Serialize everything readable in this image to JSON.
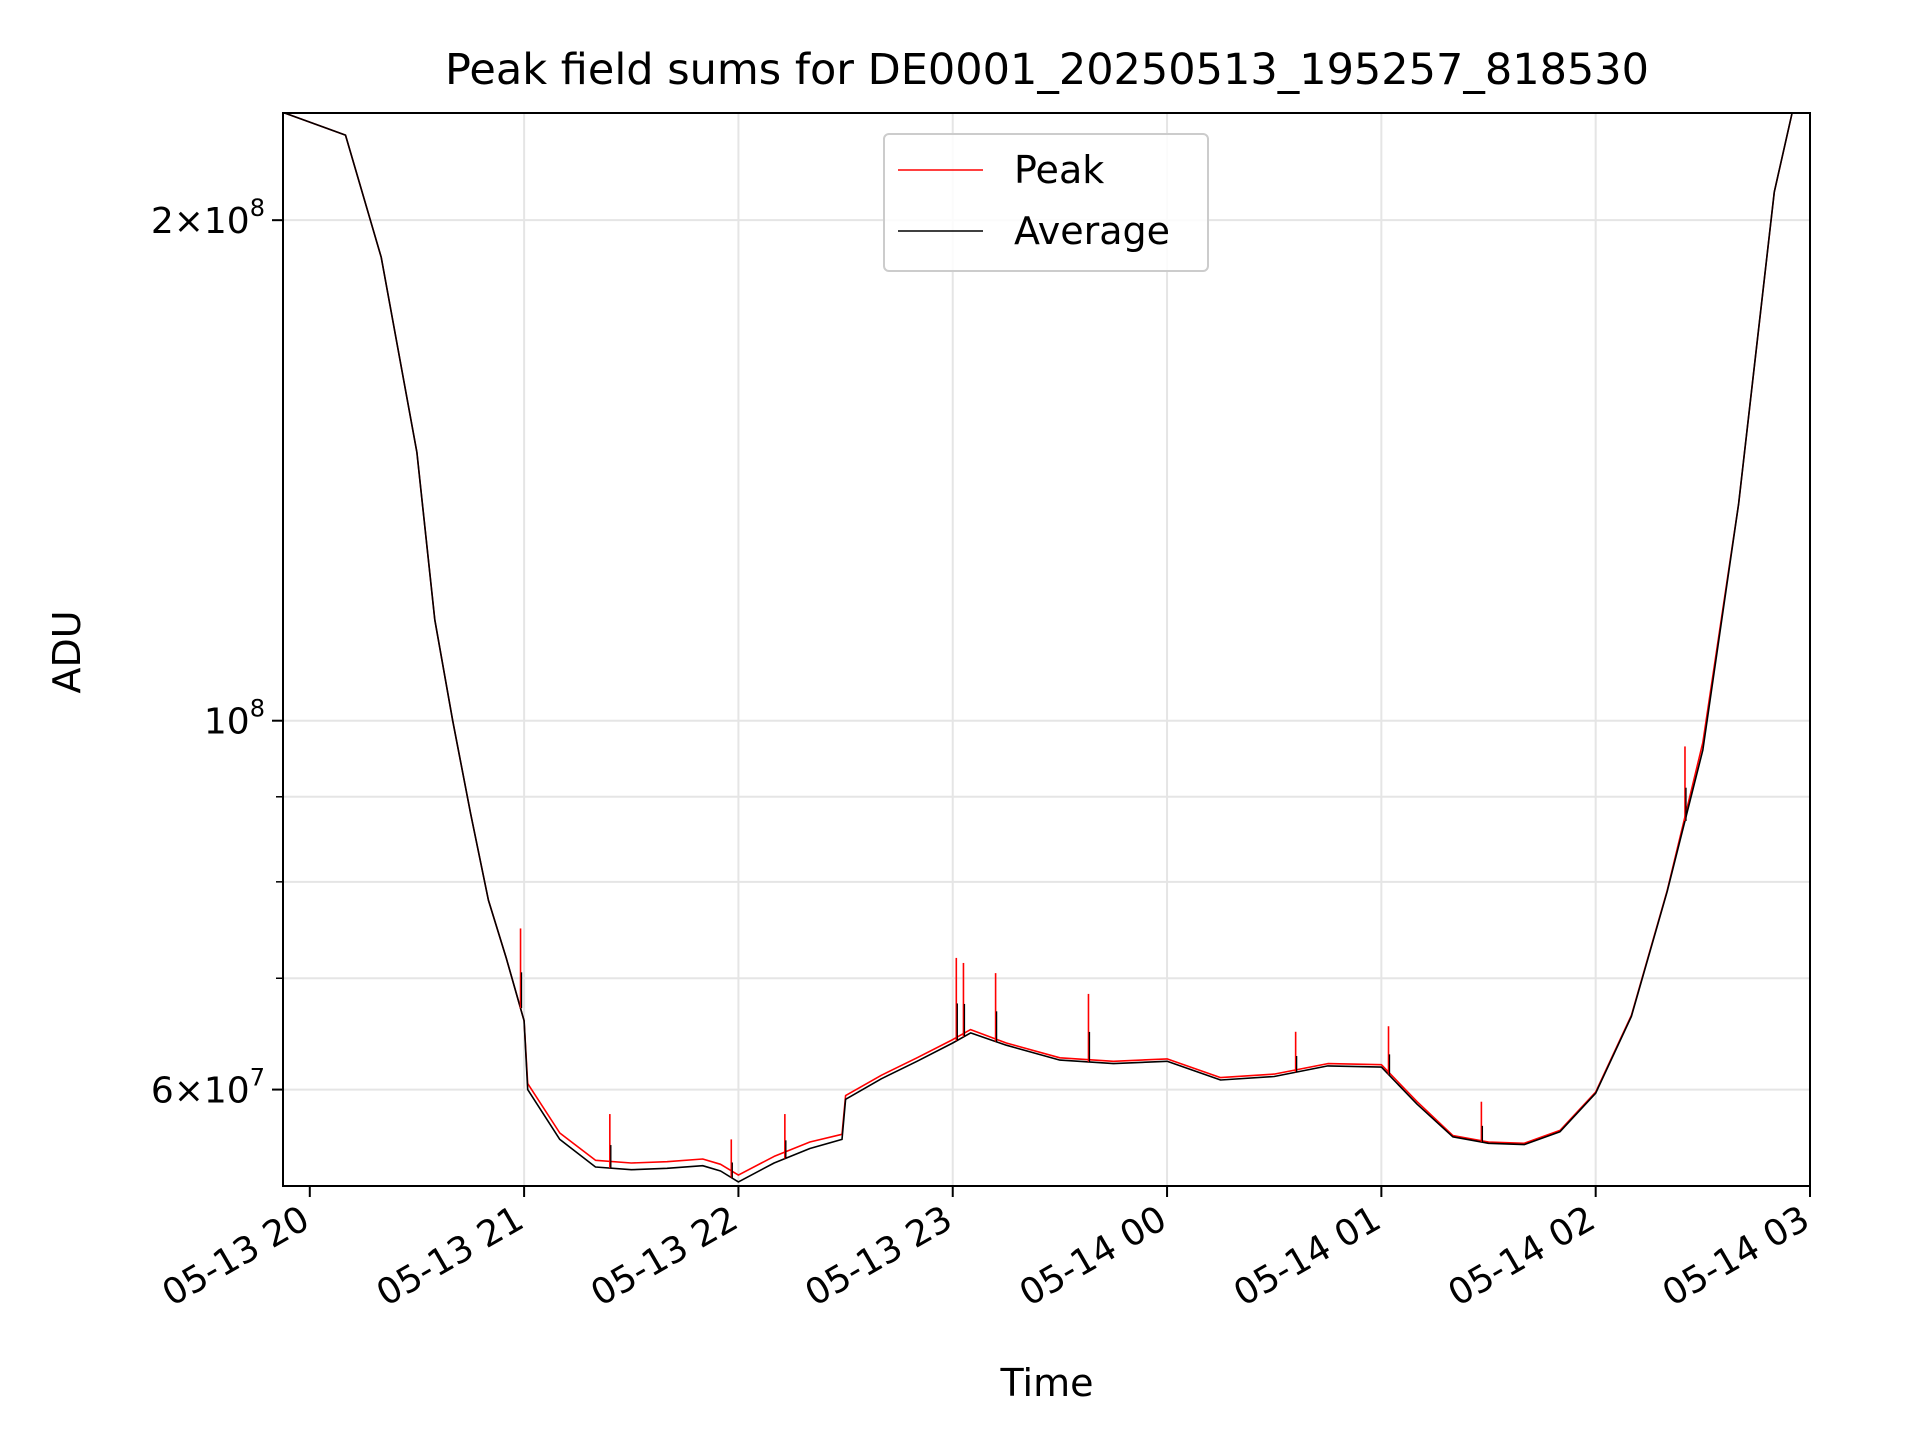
{
  "chart_data": {
    "type": "line",
    "title": "Peak field sums for DE0001_20250513_195257_818530",
    "xlabel": "Time",
    "ylabel": "ADU",
    "yscale": "log",
    "grid": true,
    "legend_position": "upper center",
    "x_ticks": [
      "05-13 20",
      "05-13 21",
      "05-13 22",
      "05-13 23",
      "05-14 00",
      "05-14 01",
      "05-14 02",
      "05-14 03"
    ],
    "y_ticks": [
      {
        "value": 60000000,
        "mantissa": "6",
        "exponent": "7"
      },
      {
        "value": 100000000,
        "mantissa": "",
        "exponent": "8"
      },
      {
        "value": 200000000,
        "mantissa": "2",
        "exponent": "8"
      }
    ],
    "xlim": [
      "2025-05-13 19:52:30",
      "2025-05-14 03:00:00"
    ],
    "ylim": [
      52500000,
      232000000
    ],
    "series": [
      {
        "name": "Peak",
        "color": "#ff0000",
        "x": [
          "2025-05-13 19:52:57",
          "2025-05-13 20:10:00",
          "2025-05-13 20:20:00",
          "2025-05-13 20:30:00",
          "2025-05-13 20:35:00",
          "2025-05-13 20:40:00",
          "2025-05-13 20:45:00",
          "2025-05-13 20:50:00",
          "2025-05-13 20:55:00",
          "2025-05-13 21:00:00",
          "2025-05-13 21:01:00",
          "2025-05-13 21:10:00",
          "2025-05-13 21:20:00",
          "2025-05-13 21:30:00",
          "2025-05-13 21:40:00",
          "2025-05-13 21:50:00",
          "2025-05-13 21:55:00",
          "2025-05-13 22:00:00",
          "2025-05-13 22:10:00",
          "2025-05-13 22:20:00",
          "2025-05-13 22:29:00",
          "2025-05-13 22:30:00",
          "2025-05-13 22:40:00",
          "2025-05-13 22:50:00",
          "2025-05-13 23:00:00",
          "2025-05-13 23:05:00",
          "2025-05-13 23:15:00",
          "2025-05-13 23:30:00",
          "2025-05-13 23:45:00",
          "2025-05-14 00:00:00",
          "2025-05-14 00:15:00",
          "2025-05-14 00:30:00",
          "2025-05-14 00:45:00",
          "2025-05-14 01:00:00",
          "2025-05-14 01:10:00",
          "2025-05-14 01:20:00",
          "2025-05-14 01:30:00",
          "2025-05-14 01:40:00",
          "2025-05-14 01:50:00",
          "2025-05-14 02:00:00",
          "2025-05-14 02:10:00",
          "2025-05-14 02:20:00",
          "2025-05-14 02:30:00",
          "2025-05-14 02:40:00",
          "2025-05-14 02:50:00",
          "2025-05-14 02:55:00"
        ],
        "y": [
          232000000,
          225000000,
          190000000,
          145000000,
          115000000,
          100000000,
          88000000,
          78000000,
          72000000,
          66000000,
          60500000,
          56500000,
          54400000,
          54200000,
          54300000,
          54500000,
          54100000,
          53300000,
          54700000,
          55800000,
          56400000,
          59500000,
          61200000,
          62700000,
          64300000,
          65200000,
          64000000,
          62700000,
          62400000,
          62600000,
          61000000,
          61300000,
          62200000,
          62100000,
          59000000,
          56300000,
          55800000,
          55700000,
          56700000,
          59800000,
          66500000,
          79000000,
          97000000,
          135000000,
          208000000,
          232000000
        ]
      },
      {
        "name": "Average",
        "color": "#000000",
        "x": [
          "2025-05-13 19:52:57",
          "2025-05-13 20:10:00",
          "2025-05-13 20:20:00",
          "2025-05-13 20:30:00",
          "2025-05-13 20:35:00",
          "2025-05-13 20:40:00",
          "2025-05-13 20:45:00",
          "2025-05-13 20:50:00",
          "2025-05-13 20:55:00",
          "2025-05-13 21:00:00",
          "2025-05-13 21:01:00",
          "2025-05-13 21:10:00",
          "2025-05-13 21:20:00",
          "2025-05-13 21:30:00",
          "2025-05-13 21:40:00",
          "2025-05-13 21:50:00",
          "2025-05-13 21:55:00",
          "2025-05-13 22:00:00",
          "2025-05-13 22:10:00",
          "2025-05-13 22:20:00",
          "2025-05-13 22:29:00",
          "2025-05-13 22:30:00",
          "2025-05-13 22:40:00",
          "2025-05-13 22:50:00",
          "2025-05-13 23:00:00",
          "2025-05-13 23:05:00",
          "2025-05-13 23:15:00",
          "2025-05-13 23:30:00",
          "2025-05-13 23:45:00",
          "2025-05-14 00:00:00",
          "2025-05-14 00:15:00",
          "2025-05-14 00:30:00",
          "2025-05-14 00:45:00",
          "2025-05-14 01:00:00",
          "2025-05-14 01:10:00",
          "2025-05-14 01:20:00",
          "2025-05-14 01:30:00",
          "2025-05-14 01:40:00",
          "2025-05-14 01:50:00",
          "2025-05-14 02:00:00",
          "2025-05-14 02:10:00",
          "2025-05-14 02:20:00",
          "2025-05-14 02:30:00",
          "2025-05-14 02:40:00",
          "2025-05-14 02:50:00",
          "2025-05-14 02:55:00"
        ],
        "y": [
          232000000,
          225000000,
          190000000,
          145000000,
          115000000,
          100000000,
          88000000,
          78000000,
          72000000,
          66000000,
          60000000,
          56000000,
          53900000,
          53700000,
          53800000,
          54000000,
          53600000,
          52800000,
          54200000,
          55300000,
          56000000,
          59200000,
          60900000,
          62400000,
          64000000,
          64900000,
          63800000,
          62500000,
          62200000,
          62400000,
          60800000,
          61100000,
          62000000,
          61900000,
          58800000,
          56200000,
          55700000,
          55600000,
          56600000,
          59700000,
          66400000,
          78900000,
          96000000,
          135000000,
          208000000,
          232000000
        ]
      }
    ],
    "spikes": [
      {
        "x": "2025-05-13 20:59:00",
        "y": 75000000
      },
      {
        "x": "2025-05-13 21:24:00",
        "y": 58000000
      },
      {
        "x": "2025-05-13 21:58:00",
        "y": 56000000
      },
      {
        "x": "2025-05-13 22:13:00",
        "y": 58000000
      },
      {
        "x": "2025-05-13 23:01:00",
        "y": 72000000
      },
      {
        "x": "2025-05-13 23:03:00",
        "y": 71500000
      },
      {
        "x": "2025-05-13 23:12:00",
        "y": 70500000
      },
      {
        "x": "2025-05-13 23:38:00",
        "y": 68500000
      },
      {
        "x": "2025-05-14 00:36:00",
        "y": 65000000
      },
      {
        "x": "2025-05-14 01:02:00",
        "y": 65500000
      },
      {
        "x": "2025-05-14 01:28:00",
        "y": 59000000
      },
      {
        "x": "2025-05-14 02:25:00",
        "y": 96500000
      }
    ]
  }
}
